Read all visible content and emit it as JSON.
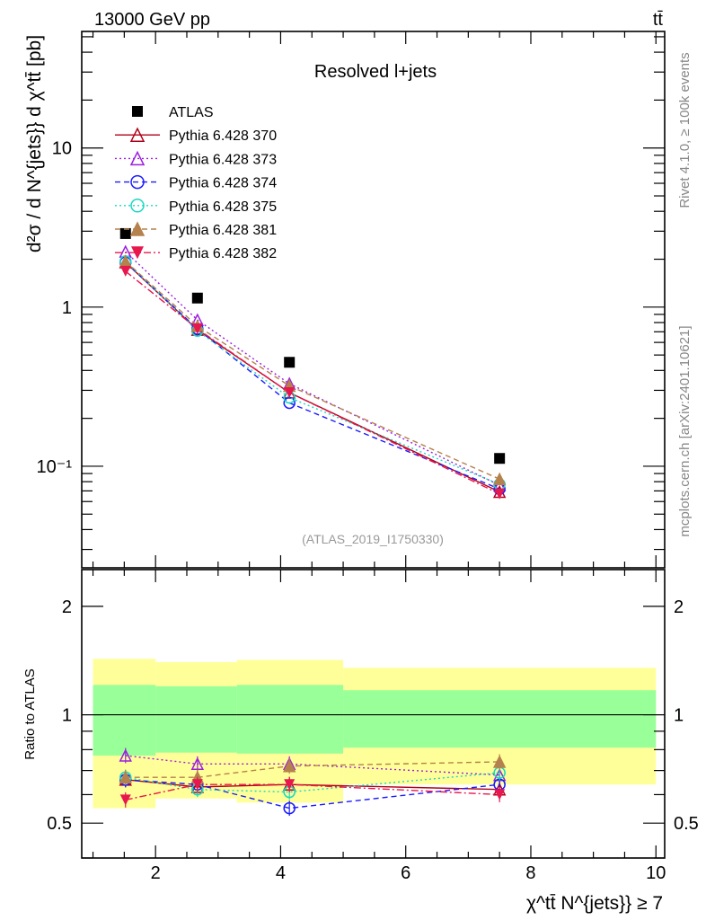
{
  "header": {
    "energy": "13000 GeV pp",
    "process": "tt̄"
  },
  "side_text": {
    "rivet": "Rivet 4.1.0, ≥ 100k events",
    "source": "mcplots.cern.ch [arXiv:2401.10621]"
  },
  "chart_data": [
    {
      "type": "line",
      "title": "Resolved l+jets",
      "analysis_id": "(ATLAS_2019_I1750330)",
      "ylabel": "d²σ / d N^{jets}} d χ^tt̄ [pb]",
      "yscale": "log",
      "xlim": [
        0.82,
        10.14
      ],
      "ylim": [
        0.023,
        54
      ],
      "ytick_labels": [
        {
          "v": 10,
          "label": "10"
        },
        {
          "v": 1,
          "label": "1"
        },
        {
          "v": 0.1,
          "label": "10⁻¹"
        }
      ],
      "legend_placement": "top-left",
      "x": [
        1.52,
        2.67,
        4.14,
        7.5
      ],
      "series": [
        {
          "name": "ATLAS",
          "color": "#000000",
          "marker": "square-filled",
          "line": "none",
          "values": [
            2.9,
            1.14,
            0.45,
            0.112
          ]
        },
        {
          "name": "Pythia 6.428 370",
          "color": "#b0001a",
          "marker": "triangle-open",
          "line": "solid",
          "values": [
            1.91,
            0.72,
            0.29,
            0.069
          ]
        },
        {
          "name": "Pythia 6.428 373",
          "color": "#9b1fe0",
          "marker": "triangle-open",
          "line": "dotted",
          "values": [
            2.23,
            0.83,
            0.33,
            0.076
          ]
        },
        {
          "name": "Pythia 6.428 374",
          "color": "#1a1aff",
          "marker": "circle-open",
          "line": "dashed",
          "values": [
            1.91,
            0.73,
            0.25,
            0.072
          ]
        },
        {
          "name": "Pythia 6.428 375",
          "color": "#18d8c0",
          "marker": "circle-open",
          "line": "dotted",
          "values": [
            1.94,
            0.71,
            0.27,
            0.077
          ]
        },
        {
          "name": "Pythia 6.428 381",
          "color": "#b5814c",
          "marker": "triangle-filled",
          "line": "dashed",
          "values": [
            1.94,
            0.76,
            0.32,
            0.083
          ]
        },
        {
          "name": "Pythia 6.428 382",
          "color": "#e8174d",
          "marker": "triangle-down-filled",
          "line": "dashdot",
          "values": [
            1.68,
            0.73,
            0.29,
            0.067
          ]
        }
      ]
    },
    {
      "type": "line",
      "ylabel": "Ratio to ATLAS",
      "xlabel": "χ^tt̄ N^{jets}} ≥ 7",
      "yscale": "log",
      "xlim": [
        0.82,
        10.14
      ],
      "ylim": [
        0.4,
        2.53
      ],
      "xtick_labels": [
        {
          "v": 2,
          "label": "2"
        },
        {
          "v": 4,
          "label": "4"
        },
        {
          "v": 6,
          "label": "6"
        },
        {
          "v": 8,
          "label": "8"
        },
        {
          "v": 10,
          "label": "10"
        }
      ],
      "ytick_labels": [
        {
          "v": 2,
          "label": "2"
        },
        {
          "v": 1,
          "label": "1"
        },
        {
          "v": 0.5,
          "label": "0.5"
        }
      ],
      "bands": {
        "bins": [
          [
            1.0,
            2.0
          ],
          [
            2.0,
            3.3
          ],
          [
            3.3,
            5.0
          ],
          [
            5.0,
            10.0
          ]
        ],
        "yellow": {
          "color": "#ffff99",
          "low": [
            0.55,
            0.585,
            0.57,
            0.64
          ],
          "high": [
            1.43,
            1.4,
            1.42,
            1.35
          ]
        },
        "green": {
          "color": "#99ff99",
          "low": [
            0.77,
            0.785,
            0.78,
            0.81
          ],
          "high": [
            1.21,
            1.2,
            1.21,
            1.17
          ]
        }
      },
      "x": [
        1.52,
        2.67,
        4.14,
        7.5
      ],
      "series": [
        {
          "name": "Pythia 6.428 370",
          "values": [
            0.66,
            0.63,
            0.64,
            0.62
          ]
        },
        {
          "name": "Pythia 6.428 373",
          "values": [
            0.77,
            0.73,
            0.73,
            0.68
          ]
        },
        {
          "name": "Pythia 6.428 374",
          "values": [
            0.66,
            0.64,
            0.55,
            0.64
          ]
        },
        {
          "name": "Pythia 6.428 375",
          "values": [
            0.67,
            0.62,
            0.61,
            0.69
          ]
        },
        {
          "name": "Pythia 6.428 381",
          "values": [
            0.67,
            0.67,
            0.72,
            0.74
          ]
        },
        {
          "name": "Pythia 6.428 382",
          "values": [
            0.58,
            0.64,
            0.64,
            0.6
          ]
        }
      ]
    }
  ]
}
